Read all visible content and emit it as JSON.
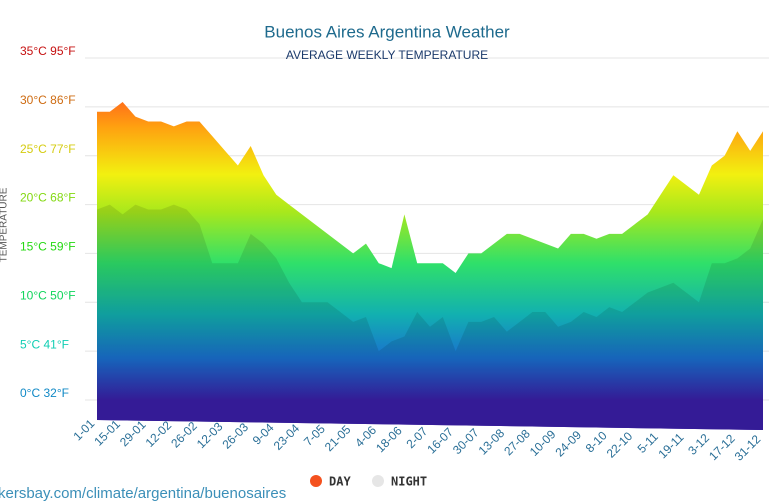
{
  "chart_data": {
    "type": "area",
    "title": "Buenos Aires Argentina Weather",
    "subtitle": "AVERAGE WEEKLY TEMPERATURE",
    "y_axis_label": "TEMPERATURE",
    "source": "kersbay.com/climate/argentina/buenosaires",
    "categories": [
      "1-01",
      null,
      "15-01",
      null,
      "29-01",
      null,
      "12-02",
      null,
      "26-02",
      null,
      "12-03",
      null,
      "26-03",
      null,
      "9-04",
      null,
      "23-04",
      null,
      "7-05",
      null,
      "21-05",
      null,
      "4-06",
      null,
      "18-06",
      null,
      "2-07",
      null,
      "16-07",
      null,
      "30-07",
      null,
      "13-08",
      null,
      "27-08",
      null,
      "10-09",
      null,
      "24-09",
      null,
      "8-10",
      null,
      "22-10",
      null,
      "5-11",
      null,
      "19-11",
      null,
      "3-12",
      null,
      "17-12",
      null,
      "31-12"
    ],
    "series": [
      {
        "name": "DAY",
        "color": "#f4511e",
        "values": [
          29.5,
          29.5,
          30.5,
          29,
          28.5,
          28.5,
          28,
          28.5,
          28.5,
          27,
          25.5,
          24,
          26,
          23,
          21,
          20,
          19,
          18,
          17,
          16,
          15,
          16,
          14,
          13.5,
          19,
          14,
          14,
          14,
          13,
          15,
          15,
          16,
          17,
          17,
          16.5,
          16,
          15.5,
          17,
          17,
          16.5,
          17,
          17,
          18,
          19,
          21,
          23,
          22,
          21,
          24,
          25,
          27.5,
          25.5,
          27.5
        ]
      },
      {
        "name": "NIGHT",
        "color": "#e6e6e6",
        "values": [
          19.5,
          20,
          19,
          20,
          19.5,
          19.5,
          20,
          19.5,
          18,
          14,
          14,
          14,
          17,
          16,
          14.5,
          12,
          10,
          10,
          10,
          9,
          8,
          8.5,
          5,
          6,
          6.5,
          9,
          7.5,
          8.5,
          5,
          8,
          8,
          8.5,
          7,
          8,
          9,
          9,
          7.5,
          8,
          9,
          8.5,
          9.5,
          9,
          10,
          11,
          11.5,
          12,
          11,
          10,
          14,
          14,
          14.5,
          15.5,
          18.5
        ]
      }
    ],
    "ylim": [
      0,
      35
    ],
    "yticks": [
      {
        "value": 0,
        "label": "0°C 32°F"
      },
      {
        "value": 5,
        "label": "5°C 41°F"
      },
      {
        "value": 10,
        "label": "10°C 50°F"
      },
      {
        "value": 15,
        "label": "15°C 59°F"
      },
      {
        "value": 20,
        "label": "20°C 68°F"
      },
      {
        "value": 25,
        "label": "25°C 77°F"
      },
      {
        "value": 30,
        "label": "30°C 86°F"
      },
      {
        "value": 35,
        "label": "35°C 95°F"
      }
    ],
    "grid": true,
    "legend": "bottom"
  }
}
